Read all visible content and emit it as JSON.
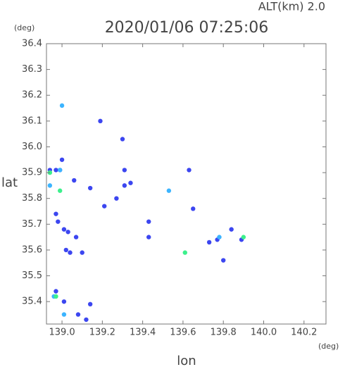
{
  "chart_data": {
    "type": "scatter",
    "title": "2020/01/06 07:25:06",
    "subtitle": "ALT(km) 2.0",
    "x_unit": "(deg)",
    "y_unit": "(deg)",
    "x_label": "lon",
    "y_label": "lat",
    "xlim": [
      138.923,
      140.309
    ],
    "ylim": [
      35.313,
      36.4
    ],
    "xticks": [
      {
        "value": 139,
        "label": "139.0"
      },
      139.2,
      139.4,
      139.6,
      139.8,
      {
        "value": 140,
        "label": "140.0"
      },
      140.2
    ],
    "yticks": [
      35.4,
      35.5,
      35.6,
      35.7,
      35.8,
      35.9,
      {
        "value": 36,
        "label": "36.0"
      },
      36.1,
      36.2,
      36.3,
      36.4
    ],
    "series": [
      {
        "color": "#3c46f0",
        "x": [
          138.99,
          138.97,
          138.94,
          139.0,
          139.06,
          138.97,
          138.98,
          139.01,
          139.03,
          139.07,
          139.02,
          139.04,
          139.1,
          138.97,
          139.01,
          139.08,
          139.12,
          139.14,
          139.3,
          139.31,
          139.31,
          139.27,
          139.21,
          139.43,
          139.43,
          139.65,
          139.63,
          139.77,
          139.84,
          139.89,
          139.73,
          139.8,
          139.19,
          139.14,
          139.34
        ],
        "values": [
          35.91,
          35.91,
          35.91,
          35.95,
          35.87,
          35.74,
          35.71,
          35.68,
          35.67,
          35.65,
          35.6,
          35.59,
          35.59,
          35.44,
          35.4,
          35.35,
          35.33,
          35.39,
          36.03,
          35.91,
          35.85,
          35.8,
          35.77,
          35.71,
          35.65,
          35.76,
          35.91,
          35.64,
          35.68,
          35.64,
          35.63,
          35.56,
          36.1,
          35.84,
          35.86
        ]
      },
      {
        "color": "#3cb4ff",
        "x": [
          139.0,
          138.94,
          139.01,
          138.96,
          138.99,
          139.53,
          139.78
        ],
        "values": [
          36.16,
          35.85,
          35.35,
          35.42,
          35.91,
          35.83,
          35.65
        ]
      },
      {
        "color": "#3cf08c",
        "x": [
          138.94,
          139.61,
          138.99,
          138.97,
          139.9
        ],
        "values": [
          35.9,
          35.59,
          35.83,
          35.42,
          35.65
        ]
      }
    ]
  }
}
